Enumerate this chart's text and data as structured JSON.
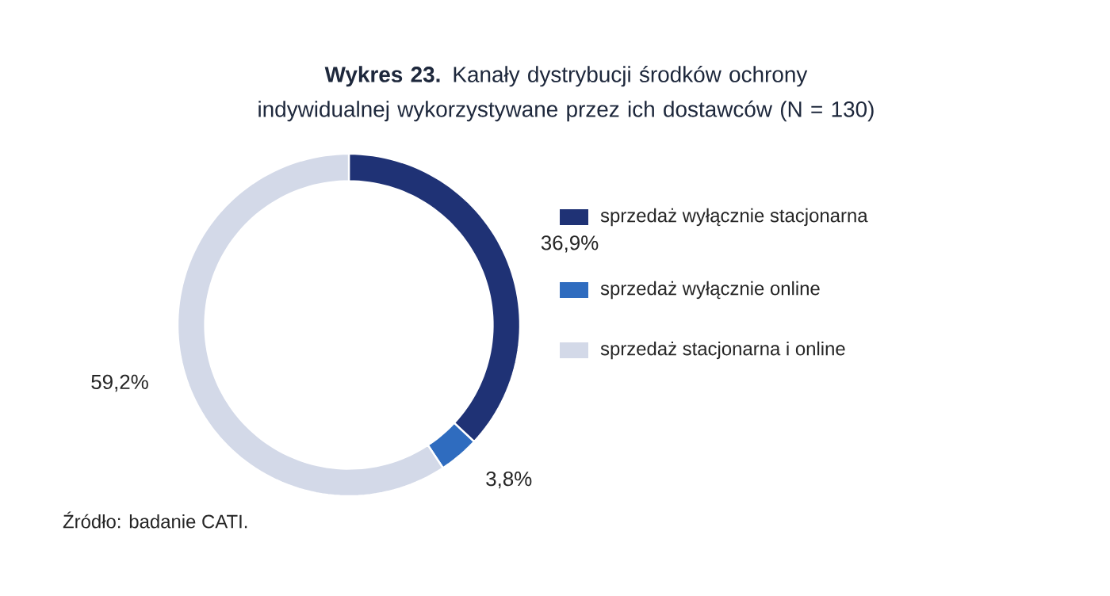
{
  "chart_data": {
    "type": "donut",
    "title": "**Wykres 23.** Kanały dystrybucji środków ochrony indywidualnej wykorzystywane przez ich dostawców (N = 130)",
    "categories": [
      "sprzedaż wyłącznie stacjonarna",
      "sprzedaż wyłącznie online",
      "sprzedaż stacjonarna i online"
    ],
    "values": [
      36.9,
      3.8,
      59.2
    ],
    "colors": [
      "#1f3275",
      "#2f6cbf",
      "#d3d9e8"
    ],
    "value_labels": [
      "36,9%",
      "3,8%",
      "59,2%"
    ],
    "legend": "right",
    "annotations": [
      "Źródło: badanie CATI."
    ]
  }
}
